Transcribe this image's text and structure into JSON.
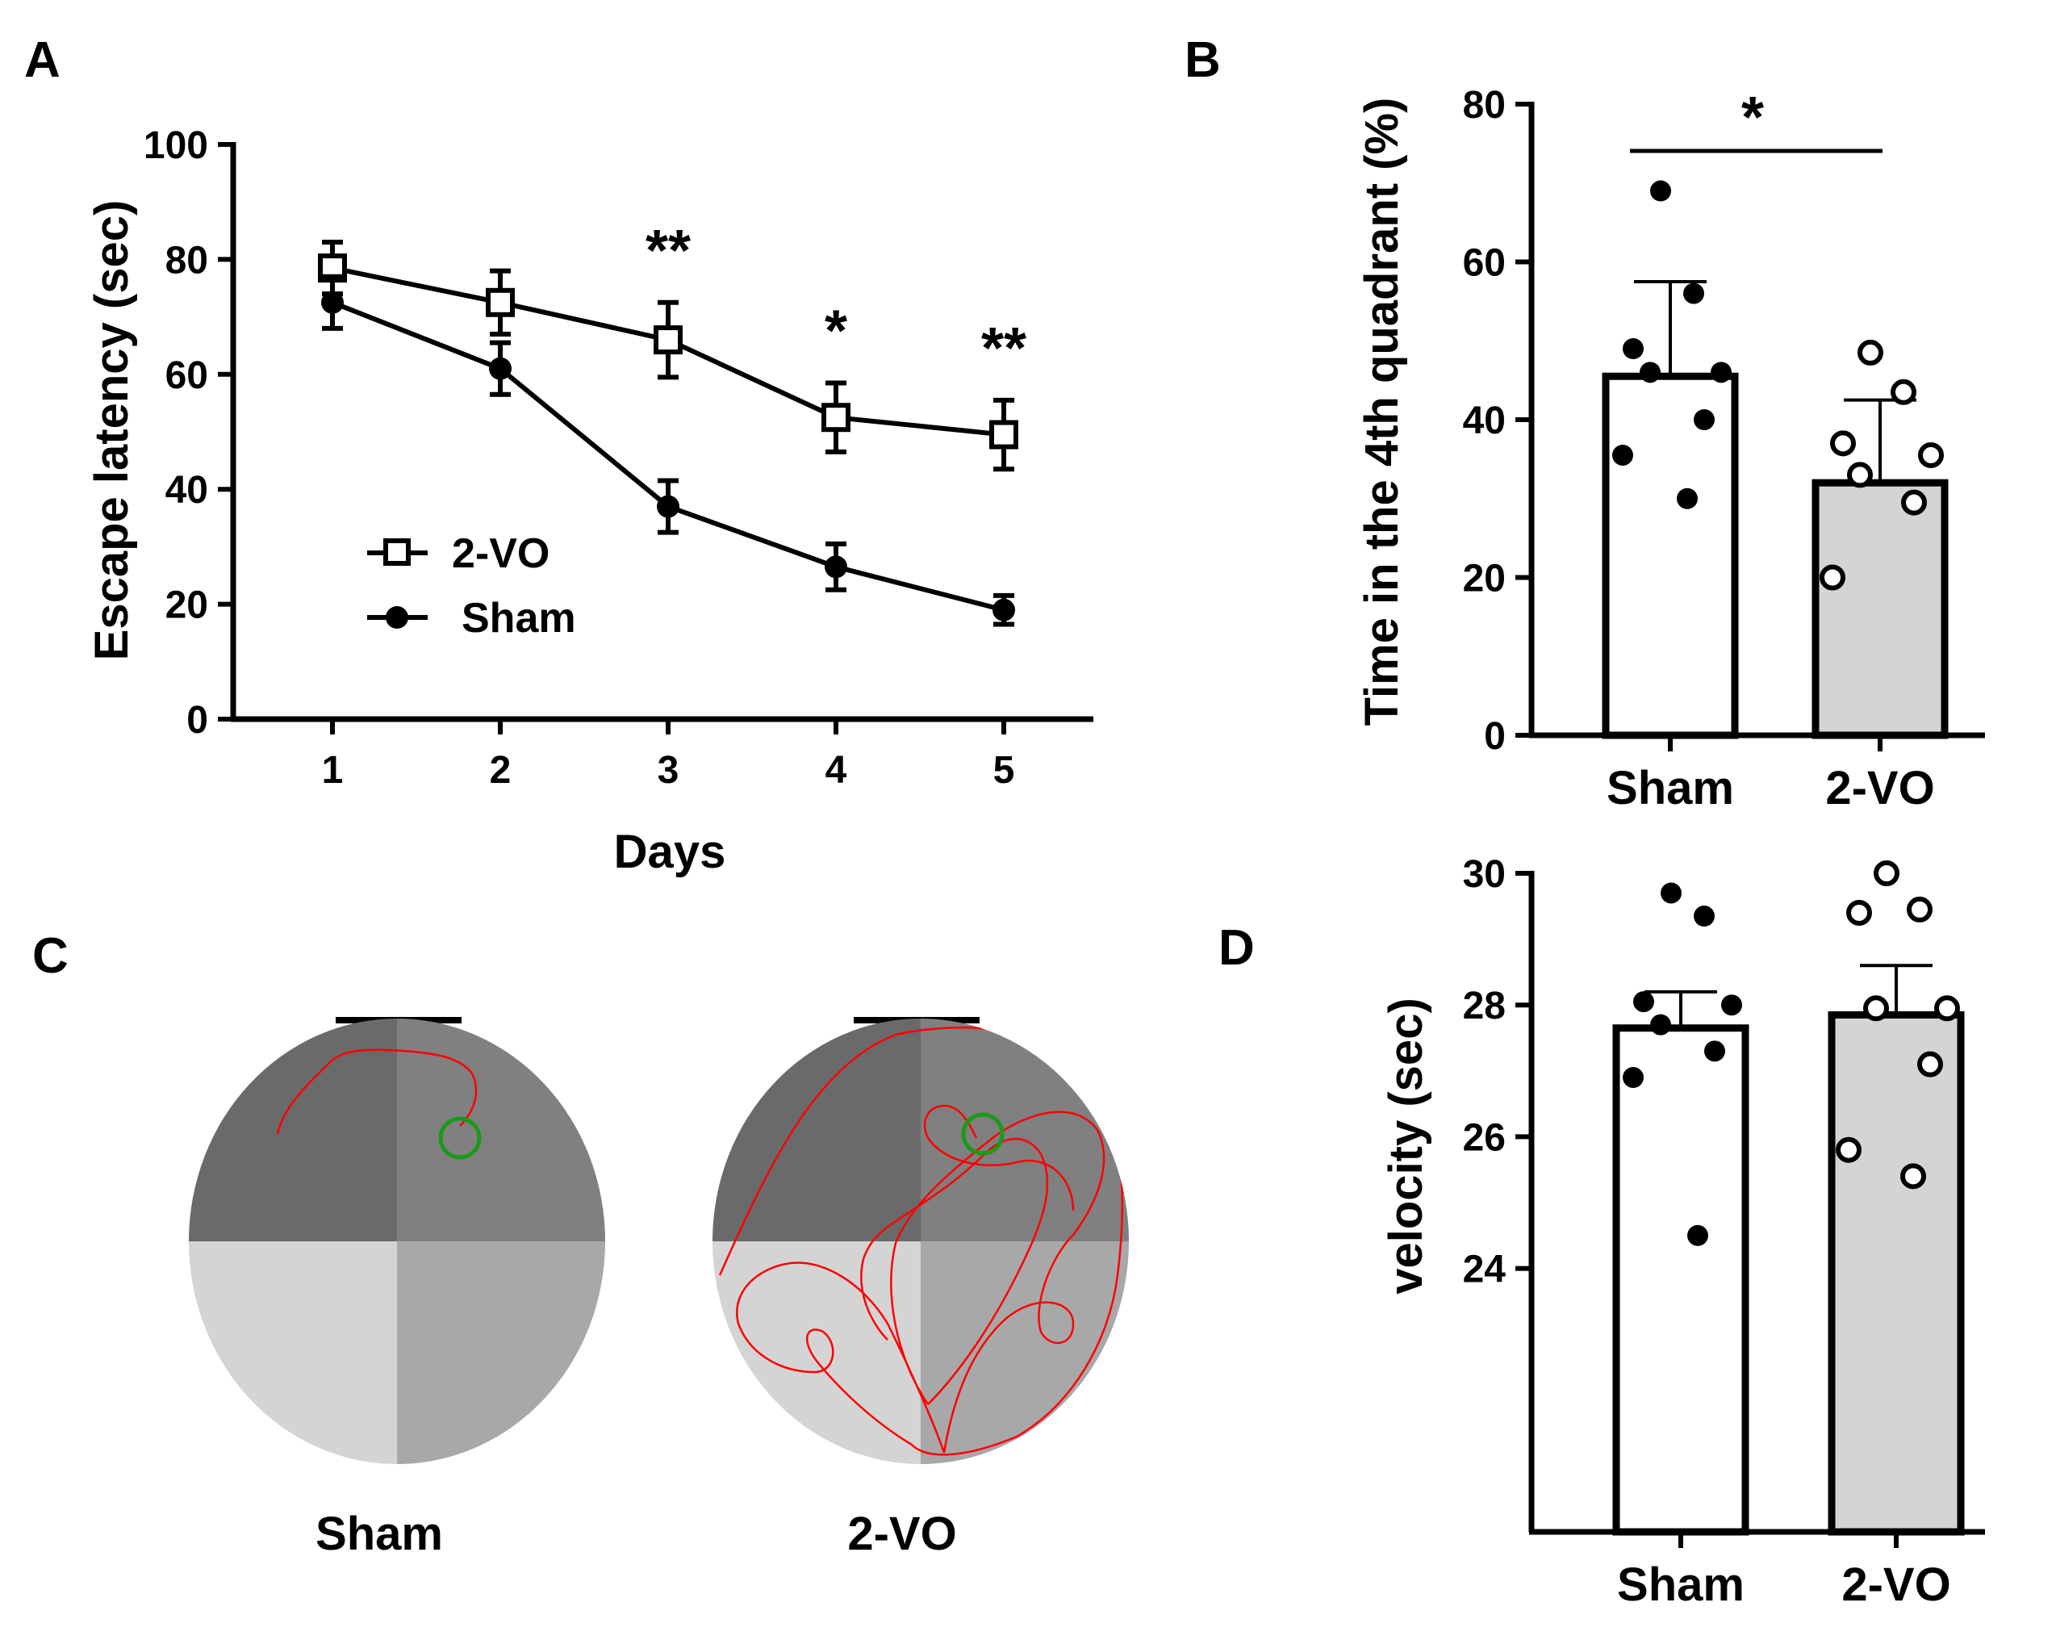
{
  "colors": {
    "ink": "#000000",
    "bar_white": "#ffffff",
    "bar_gray": "#d4d4d4",
    "path_red": "#ff0000",
    "platform_green": "#1a9a1a",
    "q_dark": "#6a6a6a",
    "q_mid": "#808080",
    "q_light": "#d4d4d4",
    "q_light_mid": "#a8a8a8"
  },
  "panels": {
    "A": {
      "letter": "A"
    },
    "B": {
      "letter": "B"
    },
    "C": {
      "letter": "C",
      "left_label": "Sham",
      "right_label": "2-VO"
    },
    "D": {
      "letter": "D"
    }
  },
  "chart_data": [
    {
      "id": "A",
      "type": "line",
      "xlabel": "Days",
      "ylabel": "Escape latency (sec)",
      "x": [
        1,
        2,
        3,
        4,
        5
      ],
      "xtick_labels": [
        "1",
        "2",
        "3",
        "4",
        "5"
      ],
      "ylim": [
        0,
        100
      ],
      "yticks": [
        0,
        20,
        40,
        60,
        80,
        100
      ],
      "ytick_labels": [
        "0",
        "20",
        "40",
        "60",
        "80",
        "100"
      ],
      "series": [
        {
          "name": "2-VO",
          "marker": "open-square",
          "values": [
            78.5,
            72.5,
            66,
            52.5,
            49.5
          ],
          "errors": [
            4.5,
            5.5,
            6.5,
            6,
            6
          ]
        },
        {
          "name": "Sham",
          "marker": "filled-circle",
          "values": [
            72.5,
            61,
            37,
            26.5,
            19
          ],
          "errors": [
            4.5,
            4.5,
            4.5,
            4,
            2.5
          ]
        }
      ],
      "annotations": [
        {
          "x": 3,
          "text": "**"
        },
        {
          "x": 4,
          "text": "*"
        },
        {
          "x": 5,
          "text": "**"
        }
      ],
      "legend": [
        "2-VO",
        "Sham"
      ]
    },
    {
      "id": "B",
      "type": "bar",
      "ylabel": "Time in the 4th quadrant (%)",
      "categories": [
        "Sham",
        "2-VO"
      ],
      "values": [
        45.5,
        32
      ],
      "errors": [
        12,
        10.5
      ],
      "ylim": [
        0,
        80
      ],
      "yticks": [
        0,
        20,
        40,
        60,
        80
      ],
      "ytick_labels": [
        "0",
        "20",
        "40",
        "60",
        "80"
      ],
      "points": [
        [
          69,
          56,
          49,
          46,
          46,
          40,
          35.5,
          30
        ],
        [
          48.5,
          43.5,
          37,
          35.5,
          33,
          29.5,
          20
        ]
      ],
      "significance": "*"
    },
    {
      "id": "D",
      "type": "bar",
      "ylabel": "velocity (sec)",
      "categories": [
        "Sham",
        "2-VO"
      ],
      "values": [
        27.65,
        27.85
      ],
      "errors": [
        0.55,
        0.75
      ],
      "ylim": [
        20,
        30
      ],
      "yticks": [
        24,
        26,
        28,
        30
      ],
      "ytick_labels": [
        "24",
        "26",
        "28",
        "30"
      ],
      "points": [
        [
          29.7,
          29.35,
          28.05,
          28.0,
          27.7,
          27.3,
          26.9,
          24.5
        ],
        [
          30.0,
          29.45,
          29.4,
          27.95,
          27.95,
          27.1,
          25.8,
          25.4
        ]
      ]
    }
  ]
}
